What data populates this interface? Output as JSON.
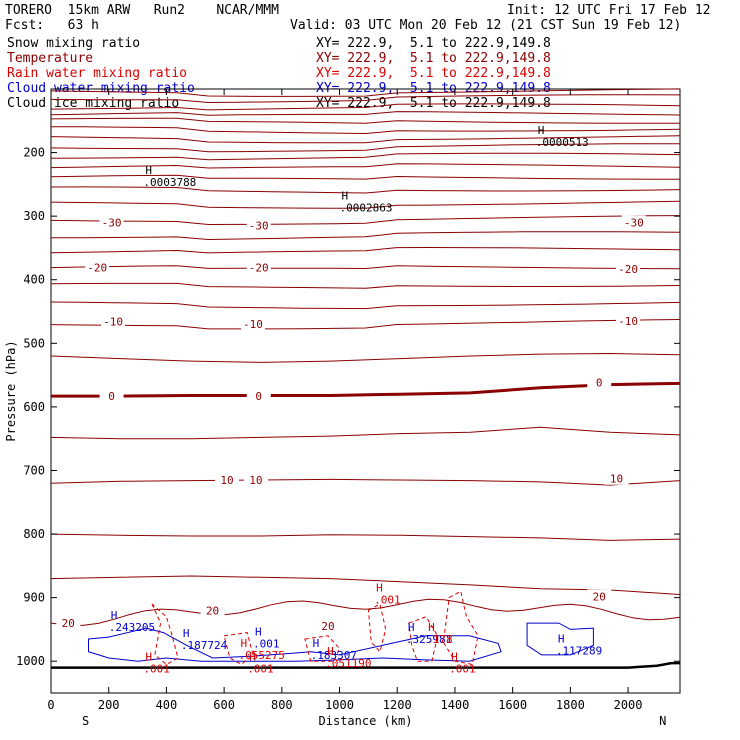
{
  "header": {
    "model_line": "TORERO  15km ARW   Run2    NCAR/MMM",
    "init_line": "Init: 12 UTC Fri 17 Feb 12",
    "fcst_line": "Fcst:   63 h",
    "valid_line": "Valid: 03 UTC Mon 20 Feb 12 (21 CST Sun 19 Feb 12)",
    "fields": [
      {
        "name": "Snow mixing ratio",
        "xy": "XY= 222.9,  5.1 to 222.9,149.8",
        "color": "#000000"
      },
      {
        "name": "Temperature",
        "xy": "XY= 222.9,  5.1 to 222.9,149.8",
        "color": "#8b0000"
      },
      {
        "name": "Rain water mixing ratio",
        "xy": "XY= 222.9,  5.1 to 222.9,149.8",
        "color": "#dd0000"
      },
      {
        "name": "Cloud water mixing ratio",
        "xy": "XY= 222.9,  5.1 to 222.9,149.8",
        "color": "#0000cc"
      },
      {
        "name": "Cloud ice mixing ratio",
        "xy": "XY= 222.9,  5.1 to 222.9,149.8",
        "color": "#000000"
      }
    ]
  },
  "chart_data": {
    "type": "cross-section contour",
    "xlabel": "Distance (km)",
    "ylabel": "Pressure (hPa)",
    "xlim": [
      0,
      2180
    ],
    "ylim": [
      1050,
      100
    ],
    "x_ticks": [
      0,
      200,
      400,
      600,
      800,
      1000,
      1200,
      1400,
      1600,
      1800,
      2000
    ],
    "y_ticks": [
      200,
      300,
      400,
      500,
      600,
      700,
      800,
      900,
      1000
    ],
    "end_labels": {
      "left": "S",
      "right": "N"
    },
    "temperature_contour_color": "#8b0000",
    "zero_isotherm_bold": true,
    "temperature_labels": [
      {
        "text": "-30",
        "x": 210,
        "p": 310
      },
      {
        "text": "-30",
        "x": 720,
        "p": 315
      },
      {
        "text": "-30",
        "x": 2020,
        "p": 310
      },
      {
        "text": "-20",
        "x": 160,
        "p": 381
      },
      {
        "text": "-20",
        "x": 720,
        "p": 381
      },
      {
        "text": "-20",
        "x": 2000,
        "p": 383
      },
      {
        "text": "-10",
        "x": 215,
        "p": 466
      },
      {
        "text": "-10",
        "x": 700,
        "p": 470
      },
      {
        "text": "-10",
        "x": 2000,
        "p": 465
      },
      {
        "text": "0",
        "x": 210,
        "p": 583
      },
      {
        "text": "0",
        "x": 720,
        "p": 583
      },
      {
        "text": "0",
        "x": 1900,
        "p": 562
      },
      {
        "text": "10",
        "x": 610,
        "p": 715
      },
      {
        "text": "10",
        "x": 710,
        "p": 715
      },
      {
        "text": "10",
        "x": 1960,
        "p": 713
      },
      {
        "text": "20",
        "x": 60,
        "p": 940
      },
      {
        "text": "20",
        "x": 560,
        "p": 920
      },
      {
        "text": "20",
        "x": 960,
        "p": 945
      },
      {
        "text": "20",
        "x": 1900,
        "p": 898
      }
    ],
    "maxima": [
      {
        "text": ".0000513",
        "x": 1680,
        "p": 180,
        "color": "#000000"
      },
      {
        "text": ".0003788",
        "x": 320,
        "p": 243,
        "color": "#000000"
      },
      {
        "text": ".0002863",
        "x": 1000,
        "p": 283,
        "color": "#000000"
      },
      {
        "text": ".243205",
        "x": 200,
        "p": 943,
        "color": "#0000cc"
      },
      {
        "text": ".187724",
        "x": 450,
        "p": 971,
        "color": "#0000cc"
      },
      {
        "text": ".001",
        "x": 700,
        "p": 969,
        "color": "#0000cc"
      },
      {
        "text": ".055275",
        "x": 650,
        "p": 987,
        "color": "#dd0000"
      },
      {
        "text": ".183307",
        "x": 900,
        "p": 987,
        "color": "#0000cc"
      },
      {
        "text": ".051190",
        "x": 950,
        "p": 1000,
        "color": "#dd0000"
      },
      {
        "text": ".001",
        "x": 1120,
        "p": 900,
        "color": "#dd0000"
      },
      {
        "text": ".325981",
        "x": 1230,
        "p": 962,
        "color": "#0000cc"
      },
      {
        "text": ".178",
        "x": 1300,
        "p": 962,
        "color": "#dd0000"
      },
      {
        "text": ".001",
        "x": 1380,
        "p": 1008,
        "color": "#dd0000"
      },
      {
        "text": ".001",
        "x": 320,
        "p": 1008,
        "color": "#dd0000"
      },
      {
        "text": ".001",
        "x": 680,
        "p": 1008,
        "color": "#dd0000"
      },
      {
        "text": ".117289",
        "x": 1750,
        "p": 980,
        "color": "#0000cc"
      }
    ]
  }
}
